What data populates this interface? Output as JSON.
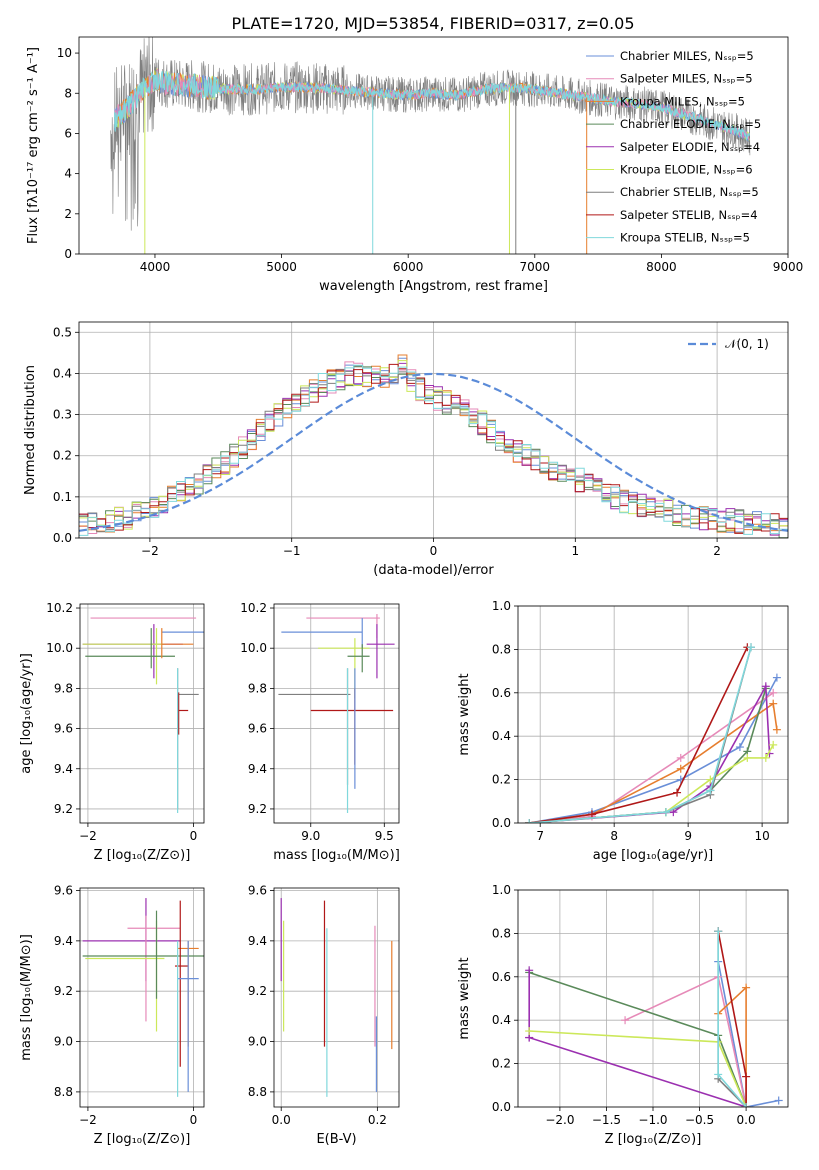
{
  "figure_title": "PLATE=1720, MJD=53854, FIBERID=0317, z=0.05",
  "colors": {
    "chabrier_miles": "#6a8fd8",
    "salpeter_miles": "#e68ab8",
    "kroupa_miles": "#e67e2e",
    "chabrier_elodie": "#5a8a5a",
    "salpeter_elodie": "#9b30b0",
    "kroupa_elodie": "#cce85a",
    "chabrier_stelib": "#7f7f7f",
    "salpeter_stelib": "#b01818",
    "kroupa_stelib": "#80d8dc",
    "normal_curve": "#5b8bd8",
    "grid": "#b0b0b0"
  },
  "chart_data": [
    {
      "id": "spectrum",
      "type": "line",
      "title": "PLATE=1720, MJD=53854, FIBERID=0317, z=0.05",
      "xlabel": "wavelength [Angstrom, rest frame]",
      "ylabel": "Flux [fλ10⁻¹⁷ erg cm⁻² s⁻¹ A⁻¹]",
      "xlim": [
        3400,
        9000
      ],
      "ylim": [
        0,
        10.8
      ],
      "xticks": [
        4000,
        5000,
        6000,
        7000,
        8000,
        9000
      ],
      "yticks": [
        0,
        2,
        4,
        6,
        8,
        10
      ],
      "grid": false,
      "legend_position": "top-right",
      "series": [
        {
          "name": "Chabrier MILES, Nₛₛₚ=5",
          "color": "#6a8fd8"
        },
        {
          "name": "Salpeter MILES, Nₛₛₚ=5",
          "color": "#e68ab8"
        },
        {
          "name": "Kroupa MILES, Nₛₛₚ=5",
          "color": "#e67e2e"
        },
        {
          "name": "Chabrier ELODIE, Nₛₛₚ=5",
          "color": "#5a8a5a"
        },
        {
          "name": "Salpeter ELODIE, Nₛₛₚ=4",
          "color": "#9b30b0"
        },
        {
          "name": "Kroupa ELODIE, Nₛₛₚ=6",
          "color": "#cce85a"
        },
        {
          "name": "Chabrier STELIB, Nₛₛₚ=5",
          "color": "#7f7f7f"
        },
        {
          "name": "Salpeter STELIB, Nₛₛₚ=4",
          "color": "#b01818"
        },
        {
          "name": "Kroupa STELIB, Nₛₛₚ=5",
          "color": "#80d8dc"
        }
      ],
      "data_envelope": {
        "x": [
          3650,
          3700,
          3800,
          3900,
          4000,
          4100,
          4200,
          4300,
          4400,
          4600,
          4800,
          5000,
          5200,
          5400,
          5600,
          5800,
          6000,
          6200,
          6400,
          6600,
          6800,
          7000,
          7200,
          7400,
          7600,
          7800,
          8000,
          8200,
          8400,
          8600,
          8700
        ],
        "y": [
          6.2,
          6.8,
          7.4,
          8.2,
          8.7,
          8.5,
          8.4,
          8.4,
          8.3,
          8.2,
          8.2,
          8.3,
          8.3,
          8.2,
          8.1,
          8.0,
          7.9,
          8.0,
          7.9,
          8.2,
          8.3,
          8.2,
          8.0,
          7.8,
          7.6,
          7.5,
          7.3,
          6.9,
          6.5,
          6.1,
          5.8
        ]
      }
    },
    {
      "id": "residuals",
      "type": "line",
      "xlabel": "(data-model)/error",
      "ylabel": "Normed distribution",
      "xlim": [
        -2.5,
        2.5
      ],
      "ylim": [
        0,
        0.525
      ],
      "xticks": [
        -2,
        -1,
        0,
        1,
        2
      ],
      "yticks": [
        0.0,
        0.1,
        0.2,
        0.3,
        0.4,
        0.5
      ],
      "grid": true,
      "legend_position": "top-right",
      "legend": [
        "𝒩(0, 1)"
      ],
      "bin_width": 0.1,
      "bin_start": -2.5,
      "histogram_approx": [
        0.03,
        0.035,
        0.04,
        0.04,
        0.045,
        0.05,
        0.06,
        0.07,
        0.08,
        0.09,
        0.1,
        0.11,
        0.12,
        0.135,
        0.15,
        0.165,
        0.18,
        0.2,
        0.22,
        0.24,
        0.26,
        0.28,
        0.3,
        0.315,
        0.33,
        0.345,
        0.36,
        0.37,
        0.38,
        0.39,
        0.4,
        0.4,
        0.395,
        0.39,
        0.385,
        0.4,
        0.42,
        0.38,
        0.36,
        0.35,
        0.34,
        0.33,
        0.32,
        0.31,
        0.3,
        0.28,
        0.26,
        0.24,
        0.22,
        0.21,
        0.2,
        0.19,
        0.18,
        0.17,
        0.16,
        0.15,
        0.14,
        0.13,
        0.12,
        0.11,
        0.1,
        0.09,
        0.085,
        0.08,
        0.075,
        0.07,
        0.065,
        0.06,
        0.055,
        0.05,
        0.048,
        0.046,
        0.044,
        0.042,
        0.04,
        0.038,
        0.036,
        0.034,
        0.032,
        0.03
      ],
      "normal_curve": {
        "mu": 0,
        "sigma": 1
      }
    },
    {
      "id": "z-age",
      "type": "scatter",
      "xlabel": "Z [log₁₀(Z/Z⊙)]",
      "ylabel": "age  [log₁₀(age/yr)]",
      "xlim": [
        -2.15,
        0.2
      ],
      "ylim": [
        9.13,
        10.22
      ],
      "xticks": [
        -2,
        0
      ],
      "yticks": [
        9.2,
        9.4,
        9.6,
        9.8,
        10.0,
        10.2
      ],
      "grid": true,
      "points": [
        {
          "x": -0.95,
          "y": 10.15,
          "xlo": -1.95,
          "xhi": 0.05,
          "ylo": 10.15,
          "yhi": 10.15,
          "c": "salpeter_miles"
        },
        {
          "x": -0.95,
          "y": 10.08,
          "xlo": -0.6,
          "xhi": 0.25,
          "ylo": 10.08,
          "yhi": 10.08,
          "c": "chabrier_miles"
        },
        {
          "x": -0.75,
          "y": 10.02,
          "xlo": -2.1,
          "xhi": -0.2,
          "ylo": 9.85,
          "yhi": 10.12,
          "c": "salpeter_elodie"
        },
        {
          "x": -0.7,
          "y": 10.02,
          "xlo": -2.1,
          "xhi": -0.55,
          "ylo": 9.82,
          "yhi": 10.1,
          "c": "kroupa_elodie"
        },
        {
          "x": -0.8,
          "y": 9.96,
          "xlo": -2.05,
          "xhi": -0.35,
          "ylo": 9.9,
          "yhi": 10.1,
          "c": "chabrier_elodie"
        },
        {
          "x": -0.6,
          "y": 10.02,
          "xlo": -0.6,
          "xhi": 0.0,
          "ylo": 9.95,
          "yhi": 10.1,
          "c": "kroupa_miles"
        },
        {
          "x": -0.3,
          "y": 9.77,
          "xlo": -0.3,
          "xhi": 0.1,
          "ylo": 9.2,
          "yhi": 9.9,
          "c": "chabrier_stelib"
        },
        {
          "x": -0.28,
          "y": 9.69,
          "xlo": -0.3,
          "xhi": -0.1,
          "ylo": 9.57,
          "yhi": 9.78,
          "c": "salpeter_stelib"
        },
        {
          "x": -0.3,
          "y": 9.5,
          "xlo": -0.3,
          "xhi": -0.3,
          "ylo": 9.18,
          "yhi": 9.9,
          "c": "kroupa_stelib"
        }
      ]
    },
    {
      "id": "mass-age",
      "type": "scatter",
      "xlabel": "mass [log₁₀(M/M⊙)]",
      "ylabel": "",
      "xlim": [
        8.75,
        9.6
      ],
      "ylim": [
        9.13,
        10.22
      ],
      "xticks": [
        9.0,
        9.5
      ],
      "yticks": [
        9.2,
        9.4,
        9.6,
        9.8,
        10.0,
        10.2
      ],
      "grid": true,
      "points": [
        {
          "x": 9.45,
          "y": 10.15,
          "xlo": 8.97,
          "xhi": 9.47,
          "ylo": 10.05,
          "yhi": 10.17,
          "c": "salpeter_miles"
        },
        {
          "x": 9.35,
          "y": 10.08,
          "xlo": 8.8,
          "xhi": 9.35,
          "ylo": 10.0,
          "yhi": 10.15,
          "c": "chabrier_miles"
        },
        {
          "x": 9.45,
          "y": 10.02,
          "xlo": 9.38,
          "xhi": 9.57,
          "ylo": 9.85,
          "yhi": 10.12,
          "c": "salpeter_elodie"
        },
        {
          "x": 9.3,
          "y": 10.0,
          "xlo": 9.05,
          "xhi": 9.4,
          "ylo": 9.75,
          "yhi": 10.05,
          "c": "kroupa_elodie"
        },
        {
          "x": 9.35,
          "y": 9.96,
          "xlo": 9.25,
          "xhi": 9.4,
          "ylo": 9.88,
          "yhi": 10.02,
          "c": "chabrier_elodie"
        },
        {
          "x": 9.25,
          "y": 9.77,
          "xlo": 8.78,
          "xhi": 9.27,
          "ylo": 9.32,
          "yhi": 9.9,
          "c": "chabrier_stelib"
        },
        {
          "x": 9.3,
          "y": 9.69,
          "xlo": 9.0,
          "xhi": 9.56,
          "ylo": 9.42,
          "yhi": 9.8,
          "c": "salpeter_stelib"
        },
        {
          "x": 9.3,
          "y": 9.77,
          "xlo": 9.3,
          "xhi": 9.3,
          "ylo": 9.3,
          "yhi": 9.9,
          "c": "chabrier_miles"
        },
        {
          "x": 9.25,
          "y": 9.5,
          "xlo": 9.25,
          "xhi": 9.25,
          "ylo": 9.18,
          "yhi": 9.9,
          "c": "kroupa_stelib"
        }
      ]
    },
    {
      "id": "age-weight",
      "type": "line",
      "xlabel": "age  [log₁₀(age/yr)]",
      "ylabel": "mass weight",
      "xlim": [
        6.7,
        10.35
      ],
      "ylim": [
        0,
        1.0
      ],
      "xticks": [
        7,
        8,
        9,
        10
      ],
      "yticks": [
        0.0,
        0.2,
        0.4,
        0.6,
        0.8,
        1.0
      ],
      "grid": true,
      "series": [
        {
          "c": "chabrier_miles",
          "x": [
            6.85,
            7.7,
            8.9,
            9.7,
            10.2
          ],
          "y": [
            0.0,
            0.05,
            0.2,
            0.35,
            0.67
          ]
        },
        {
          "c": "salpeter_miles",
          "x": [
            6.85,
            7.7,
            8.9,
            10.15
          ],
          "y": [
            0.0,
            0.03,
            0.3,
            0.6
          ]
        },
        {
          "c": "kroupa_miles",
          "x": [
            6.85,
            7.7,
            8.9,
            10.15,
            10.2
          ],
          "y": [
            0.0,
            0.04,
            0.25,
            0.55,
            0.43
          ]
        },
        {
          "c": "chabrier_elodie",
          "x": [
            6.85,
            8.7,
            9.3,
            9.8,
            10.05
          ],
          "y": [
            0.0,
            0.05,
            0.15,
            0.33,
            0.62
          ]
        },
        {
          "c": "salpeter_elodie",
          "x": [
            6.85,
            8.8,
            9.3,
            10.05,
            10.1
          ],
          "y": [
            0.0,
            0.05,
            0.17,
            0.63,
            0.32
          ]
        },
        {
          "c": "kroupa_elodie",
          "x": [
            6.85,
            8.7,
            9.3,
            9.8,
            10.05,
            10.15
          ],
          "y": [
            0.0,
            0.05,
            0.2,
            0.3,
            0.3,
            0.36
          ]
        },
        {
          "c": "chabrier_stelib",
          "x": [
            6.85,
            8.7,
            9.3,
            9.85
          ],
          "y": [
            0.0,
            0.05,
            0.13,
            0.81
          ]
        },
        {
          "c": "salpeter_stelib",
          "x": [
            6.85,
            7.7,
            8.85,
            9.8
          ],
          "y": [
            0.0,
            0.04,
            0.14,
            0.81
          ]
        },
        {
          "c": "kroupa_stelib",
          "x": [
            6.85,
            8.7,
            9.3,
            9.85
          ],
          "y": [
            0.0,
            0.05,
            0.15,
            0.81
          ]
        }
      ]
    },
    {
      "id": "z-mass",
      "type": "scatter",
      "xlabel": "Z [log₁₀(Z/Z⊙)]",
      "ylabel": "mass [log₁₀(M/M⊙)]",
      "xlim": [
        -2.15,
        0.2
      ],
      "ylim": [
        8.74,
        9.61
      ],
      "xticks": [
        -2,
        0
      ],
      "yticks": [
        8.8,
        9.0,
        9.2,
        9.4,
        9.6
      ],
      "grid": true,
      "points": [
        {
          "x": -0.9,
          "y": 9.4,
          "xlo": -2.1,
          "xhi": -0.25,
          "ylo": 9.24,
          "yhi": 9.57,
          "c": "salpeter_elodie"
        },
        {
          "x": -0.9,
          "y": 9.45,
          "xlo": -1.25,
          "xhi": -0.25,
          "ylo": 9.08,
          "yhi": 9.5,
          "c": "salpeter_miles"
        },
        {
          "x": -0.7,
          "y": 9.33,
          "xlo": -2.05,
          "xhi": -0.55,
          "ylo": 9.04,
          "yhi": 9.48,
          "c": "kroupa_elodie"
        },
        {
          "x": -0.7,
          "y": 9.34,
          "xlo": -2.1,
          "xhi": 0.2,
          "ylo": 9.17,
          "yhi": 9.52,
          "c": "chabrier_elodie"
        },
        {
          "x": -0.1,
          "y": 9.37,
          "xlo": -0.3,
          "xhi": 0.1,
          "ylo": 8.98,
          "yhi": 9.4,
          "c": "kroupa_miles"
        },
        {
          "x": -0.25,
          "y": 9.3,
          "xlo": -0.35,
          "xhi": -0.1,
          "ylo": 8.9,
          "yhi": 9.56,
          "c": "salpeter_stelib"
        },
        {
          "x": -0.1,
          "y": 9.25,
          "xlo": -0.3,
          "xhi": 0.1,
          "ylo": 8.8,
          "yhi": 9.4,
          "c": "chabrier_miles"
        },
        {
          "x": -0.3,
          "y": 9.25,
          "xlo": -0.3,
          "xhi": -0.3,
          "ylo": 8.78,
          "yhi": 9.4,
          "c": "kroupa_stelib"
        }
      ]
    },
    {
      "id": "ebv-mass",
      "type": "scatter",
      "xlabel": "E(B-V)",
      "ylabel": "",
      "xlim": [
        -0.015,
        0.245
      ],
      "ylim": [
        8.74,
        9.61
      ],
      "xticks": [
        0.0,
        0.2
      ],
      "yticks": [
        8.8,
        9.0,
        9.2,
        9.4,
        9.6
      ],
      "grid": true,
      "points": [
        {
          "x": 0.0,
          "y": 9.4,
          "ylo": 9.24,
          "yhi": 9.57,
          "c": "salpeter_elodie"
        },
        {
          "x": 0.005,
          "y": 9.3,
          "ylo": 9.04,
          "yhi": 9.48,
          "c": "kroupa_elodie"
        },
        {
          "x": 0.09,
          "y": 9.25,
          "ylo": 8.98,
          "yhi": 9.56,
          "c": "salpeter_stelib"
        },
        {
          "x": 0.095,
          "y": 9.1,
          "ylo": 8.78,
          "yhi": 9.45,
          "c": "kroupa_stelib"
        },
        {
          "x": 0.195,
          "y": 9.2,
          "ylo": 8.98,
          "yhi": 9.46,
          "c": "salpeter_miles"
        },
        {
          "x": 0.198,
          "y": 9.0,
          "ylo": 8.8,
          "yhi": 9.1,
          "c": "chabrier_miles"
        },
        {
          "x": 0.23,
          "y": 9.2,
          "ylo": 8.97,
          "yhi": 9.4,
          "c": "kroupa_miles"
        }
      ]
    },
    {
      "id": "z-weight",
      "type": "line",
      "xlabel": "Z [log₁₀(Z/Z⊙)]",
      "ylabel": "mass weight",
      "xlim": [
        -2.45,
        0.45
      ],
      "ylim": [
        0,
        1.0
      ],
      "xticks": [
        -2.0,
        -1.5,
        -1.0,
        -0.5,
        0.0
      ],
      "yticks": [
        0.0,
        0.2,
        0.4,
        0.6,
        0.8,
        1.0
      ],
      "grid": true,
      "series": [
        {
          "c": "chabrier_miles",
          "x": [
            -0.3,
            0.0,
            0.35
          ],
          "y": [
            0.67,
            0.0,
            0.03
          ]
        },
        {
          "c": "salpeter_miles",
          "x": [
            -1.3,
            -0.3,
            0.0
          ],
          "y": [
            0.4,
            0.6,
            0.0
          ]
        },
        {
          "c": "kroupa_miles",
          "x": [
            -0.3,
            0.0,
            0.0
          ],
          "y": [
            0.43,
            0.55,
            0.0
          ]
        },
        {
          "c": "chabrier_elodie",
          "x": [
            -2.33,
            -0.3,
            0.0
          ],
          "y": [
            0.62,
            0.33,
            0.0
          ]
        },
        {
          "c": "salpeter_elodie",
          "x": [
            -2.33,
            -2.33,
            -2.33,
            0.0
          ],
          "y": [
            0.32,
            0.63,
            0.32,
            0.0
          ]
        },
        {
          "c": "kroupa_elodie",
          "x": [
            -2.33,
            -0.3,
            0.0
          ],
          "y": [
            0.35,
            0.3,
            0.0
          ]
        },
        {
          "c": "chabrier_stelib",
          "x": [
            -0.3,
            -0.3,
            0.0
          ],
          "y": [
            0.81,
            0.13,
            0.0
          ]
        },
        {
          "c": "salpeter_stelib",
          "x": [
            -0.3,
            0.0,
            0.0
          ],
          "y": [
            0.81,
            0.14,
            0.0
          ]
        },
        {
          "c": "kroupa_stelib",
          "x": [
            -0.3,
            -0.3,
            0.0
          ],
          "y": [
            0.81,
            0.15,
            0.0
          ]
        }
      ]
    }
  ]
}
